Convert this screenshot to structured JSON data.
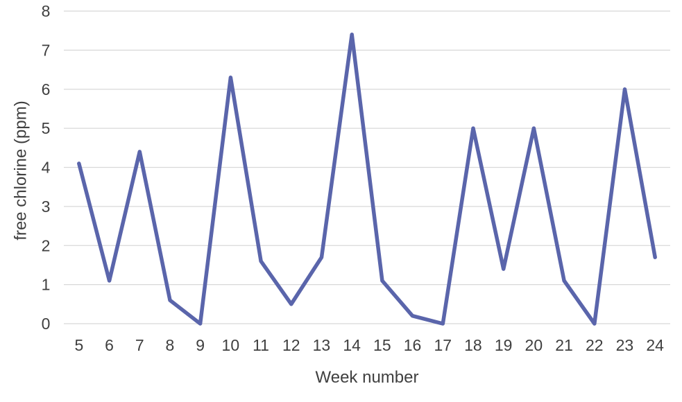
{
  "chart_data": {
    "type": "line",
    "title": "",
    "xlabel": "Week number",
    "ylabel": "free chlorine (ppm)",
    "x": [
      5,
      6,
      7,
      8,
      9,
      10,
      11,
      12,
      13,
      14,
      15,
      16,
      17,
      18,
      19,
      20,
      21,
      22,
      23,
      24
    ],
    "series": [
      {
        "name": "free chlorine (ppm)",
        "values": [
          4.1,
          1.1,
          4.4,
          0.6,
          0.0,
          6.3,
          1.6,
          0.5,
          1.7,
          7.4,
          1.1,
          0.2,
          0.0,
          5.0,
          1.4,
          5.0,
          1.1,
          0.0,
          6.0,
          1.7
        ]
      }
    ],
    "ylim": [
      0,
      8
    ],
    "yticks": [
      0,
      1,
      2,
      3,
      4,
      5,
      6,
      7,
      8
    ],
    "grid": "horizontal",
    "legend": "none",
    "colors": {
      "line": "#5A65AB",
      "gridline": "#D8D8D8",
      "tick_text": "#3F3F3F",
      "background": "#FFFFFF"
    }
  }
}
